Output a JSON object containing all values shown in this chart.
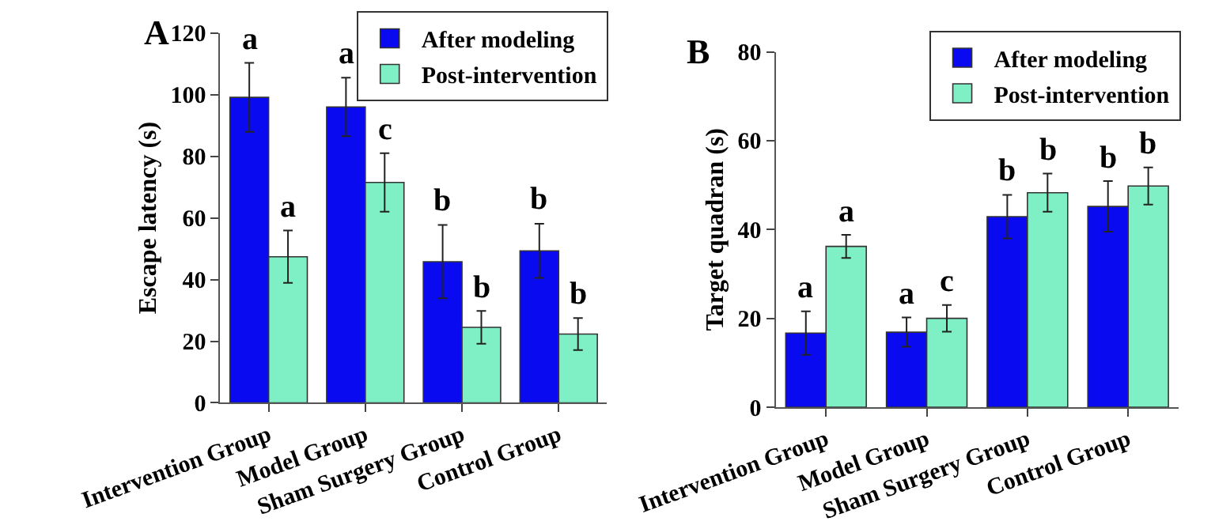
{
  "chart_data": [
    {
      "type": "bar",
      "title": "A",
      "ylabel": "Escape latency (s)",
      "categories": [
        "Intervention Group",
        "Model Group",
        "Sham Surgery Group",
        "Control Group"
      ],
      "ylim": [
        0,
        120
      ],
      "yticks": [
        0,
        20,
        40,
        60,
        80,
        100,
        120
      ],
      "legend": "top right",
      "series": [
        {
          "name": "After modeling",
          "color": "#0a0af0",
          "values": [
            99.1,
            96,
            45.8,
            49.3
          ],
          "errors": [
            11.2,
            9.5,
            11.9,
            8.8
          ],
          "value_labels": [
            "a",
            "a",
            "b",
            "b"
          ]
        },
        {
          "name": "Post-intervention",
          "color": "#7fefc5",
          "values": [
            47.4,
            71.5,
            24.5,
            22.3
          ],
          "errors": [
            8.5,
            9.5,
            5.3,
            5.2
          ],
          "value_labels": [
            "a",
            "c",
            "b",
            "b"
          ]
        }
      ]
    },
    {
      "type": "bar",
      "title": "B",
      "ylabel": "Target quadran (s)",
      "categories": [
        "Intervention Group",
        "Model Group",
        "Sham Surgery Group",
        "Control Group"
      ],
      "ylim": [
        0,
        80
      ],
      "yticks": [
        0,
        20,
        40,
        60,
        80
      ],
      "legend": "top right",
      "series": [
        {
          "name": "After modeling",
          "color": "#0a0af0",
          "values": [
            16.7,
            16.9,
            42.9,
            45.2
          ],
          "errors": [
            4.9,
            3.3,
            4.9,
            5.7
          ],
          "value_labels": [
            "a",
            "a",
            "b",
            "b"
          ]
        },
        {
          "name": "Post-intervention",
          "color": "#7fefc5",
          "values": [
            36.2,
            20.0,
            48.3,
            49.8
          ],
          "errors": [
            2.6,
            3.0,
            4.3,
            4.2
          ],
          "value_labels": [
            "a",
            "c",
            "b",
            "b"
          ]
        }
      ]
    }
  ]
}
